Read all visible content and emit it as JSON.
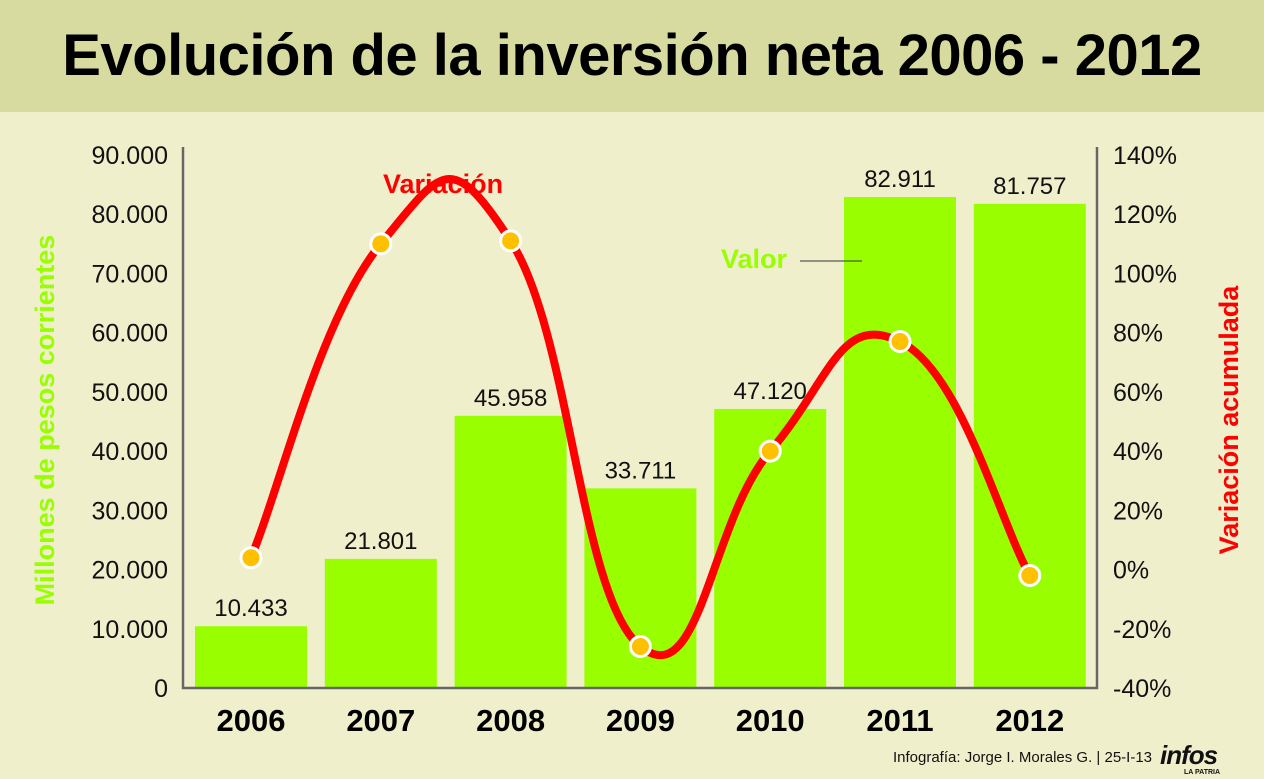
{
  "title": "Evolución de la inversión neta 2006 - 2012",
  "credit": "Infografía: Jorge I. Morales G. | 25-I-13",
  "logo": {
    "text": "infos",
    "sub": "LA PATRIA"
  },
  "colors": {
    "bar": "#99ff00",
    "line": "#ff0000",
    "marker": "#ffc000",
    "ylabel_left": "#99ff00",
    "ylabel_right": "#ff0000"
  },
  "chart_data": {
    "type": "bar",
    "title": "Evolución de la inversión neta 2006 - 2012",
    "categories": [
      "2006",
      "2007",
      "2008",
      "2009",
      "2010",
      "2011",
      "2012"
    ],
    "series": [
      {
        "name": "Valor",
        "type": "bar",
        "axis": "left",
        "values": [
          10433,
          21801,
          45958,
          33711,
          47120,
          82911,
          81757
        ],
        "labels": [
          "10.433",
          "21.801",
          "45.958",
          "33.711",
          "47.120",
          "82.911",
          "81.757"
        ]
      },
      {
        "name": "Variación",
        "type": "line",
        "axis": "right",
        "values": [
          4,
          110,
          111,
          -26,
          40,
          77,
          -2
        ]
      }
    ],
    "ylabel": "Millones de pesos corrientes",
    "ylim": [
      0,
      90000
    ],
    "yticks": [
      "0",
      "10.000",
      "20.000",
      "30.000",
      "40.000",
      "50.000",
      "60.000",
      "70.000",
      "80.000",
      "90.000"
    ],
    "y2label": "Variación acumulada",
    "y2lim": [
      -40,
      140
    ],
    "y2ticks": [
      "-40%",
      "-20%",
      "0%",
      "20%",
      "40%",
      "60%",
      "80%",
      "100%",
      "120%",
      "140%"
    ],
    "annotations": [
      "Variación",
      "Valor"
    ],
    "grid": false
  }
}
